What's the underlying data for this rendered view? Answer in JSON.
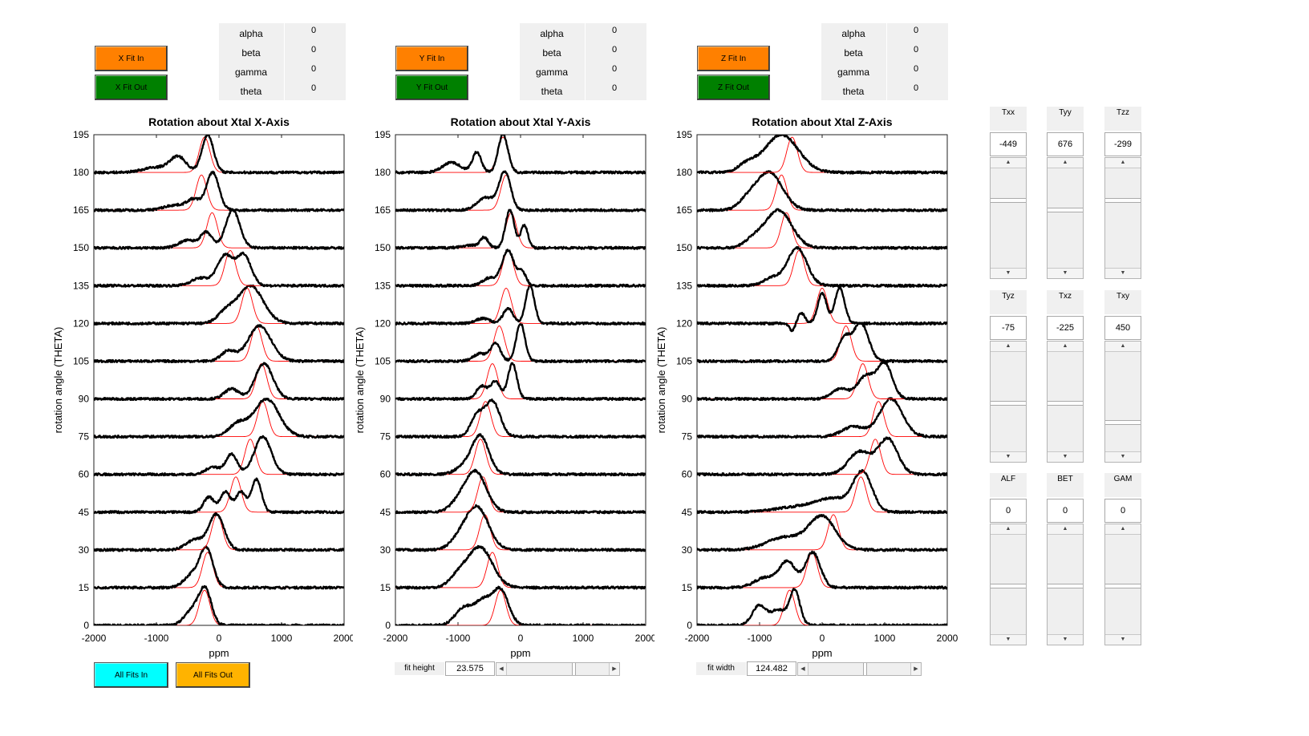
{
  "colors": {
    "fit_in": "#ff8000",
    "fit_out": "#008000",
    "all_in": "#00ffff",
    "all_out": "#ffb300",
    "curve": "#000000",
    "fit": "#ff0000"
  },
  "panels": [
    {
      "fit_in_label": "X Fit In",
      "fit_out_label": "X Fit Out",
      "params": [
        {
          "name": "alpha",
          "value": "0"
        },
        {
          "name": "beta",
          "value": "0"
        },
        {
          "name": "gamma",
          "value": "0"
        },
        {
          "name": "theta",
          "value": "0"
        }
      ]
    },
    {
      "fit_in_label": "Y Fit In",
      "fit_out_label": "Y Fit Out",
      "params": [
        {
          "name": "alpha",
          "value": "0"
        },
        {
          "name": "beta",
          "value": "0"
        },
        {
          "name": "gamma",
          "value": "0"
        },
        {
          "name": "theta",
          "value": "0"
        }
      ]
    },
    {
      "fit_in_label": "Z Fit In",
      "fit_out_label": "Z Fit Out",
      "params": [
        {
          "name": "alpha",
          "value": "0"
        },
        {
          "name": "beta",
          "value": "0"
        },
        {
          "name": "gamma",
          "value": "0"
        },
        {
          "name": "theta",
          "value": "0"
        }
      ]
    }
  ],
  "chart_data": [
    {
      "type": "line",
      "title": "Rotation about Xtal X-Axis",
      "xlabel": "ppm",
      "ylabel": "rotation angle (THETA)",
      "xlim": [
        -2000,
        2000
      ],
      "ylim": [
        0,
        195
      ],
      "xticks": [
        "-2000",
        "-1000",
        "0",
        "1000",
        "2000"
      ],
      "yticks": [
        "0",
        "15",
        "30",
        "45",
        "60",
        "75",
        "90",
        "105",
        "120",
        "135",
        "150",
        "165",
        "180",
        "195"
      ],
      "traces": [
        {
          "angle": 0,
          "fit": {
            "c": -230,
            "w": 120,
            "h": 14
          },
          "data": [
            [
              -220,
              14,
              140
            ],
            [
              -430,
              6,
              170
            ]
          ]
        },
        {
          "angle": 15,
          "fit": {
            "c": -180,
            "w": 120,
            "h": 14
          },
          "data": [
            [
              -200,
              15,
              150
            ],
            [
              -430,
              5,
              180
            ]
          ]
        },
        {
          "angle": 30,
          "fit": {
            "c": -30,
            "w": 120,
            "h": 14
          },
          "data": [
            [
              -40,
              14,
              170
            ],
            [
              -380,
              4,
              200
            ]
          ]
        },
        {
          "angle": 45,
          "fit": {
            "c": 270,
            "w": 120,
            "h": 14
          },
          "data": [
            [
              600,
              13,
              110
            ],
            [
              350,
              8,
              120
            ],
            [
              100,
              8,
              110
            ],
            [
              -160,
              6,
              120
            ]
          ]
        },
        {
          "angle": 60,
          "fit": {
            "c": 500,
            "w": 120,
            "h": 14
          },
          "data": [
            [
              700,
              15,
              190
            ],
            [
              200,
              8,
              130
            ],
            [
              -100,
              3,
              150
            ]
          ]
        },
        {
          "angle": 75,
          "fit": {
            "c": 700,
            "w": 120,
            "h": 14
          },
          "data": [
            [
              760,
              15,
              280
            ],
            [
              300,
              5,
              200
            ]
          ]
        },
        {
          "angle": 90,
          "fit": {
            "c": 680,
            "w": 120,
            "h": 14
          },
          "data": [
            [
              720,
              14,
              200
            ],
            [
              200,
              4,
              160
            ]
          ]
        },
        {
          "angle": 105,
          "fit": {
            "c": 600,
            "w": 120,
            "h": 14
          },
          "data": [
            [
              650,
              14,
              260
            ],
            [
              150,
              4,
              160
            ]
          ]
        },
        {
          "angle": 120,
          "fit": {
            "c": 450,
            "w": 120,
            "h": 14
          },
          "data": [
            [
              500,
              15,
              290
            ],
            [
              100,
              4,
              180
            ]
          ]
        },
        {
          "angle": 135,
          "fit": {
            "c": 180,
            "w": 120,
            "h": 14
          },
          "data": [
            [
              400,
              12,
              160
            ],
            [
              100,
              12,
              180
            ],
            [
              -300,
              3,
              200
            ]
          ]
        },
        {
          "angle": 150,
          "fit": {
            "c": -110,
            "w": 120,
            "h": 14
          },
          "data": [
            [
              220,
              15,
              160
            ],
            [
              -200,
              6,
              130
            ],
            [
              -500,
              3,
              200
            ]
          ]
        },
        {
          "angle": 165,
          "fit": {
            "c": -280,
            "w": 120,
            "h": 14
          },
          "data": [
            [
              -100,
              15,
              140
            ],
            [
              -400,
              4,
              150
            ],
            [
              -700,
              2,
              250
            ]
          ]
        },
        {
          "angle": 180,
          "fit": {
            "c": -230,
            "w": 120,
            "h": 14
          },
          "data": [
            [
              -180,
              15,
              130
            ],
            [
              -650,
              6,
              180
            ],
            [
              -1000,
              2,
              300
            ]
          ]
        }
      ]
    },
    {
      "type": "line",
      "title": "Rotation about Xtal Y-Axis",
      "xlabel": "ppm",
      "ylabel": "rotation angle (THETA)",
      "xlim": [
        -2000,
        2000
      ],
      "ylim": [
        0,
        195
      ],
      "xticks": [
        "-2000",
        "-1000",
        "0",
        "1000",
        "2000"
      ],
      "yticks": [
        "0",
        "15",
        "30",
        "45",
        "60",
        "75",
        "90",
        "105",
        "120",
        "135",
        "150",
        "165",
        "180",
        "195"
      ],
      "traces": [
        {
          "angle": 0,
          "fit": {
            "c": -320,
            "w": 120,
            "h": 14
          },
          "data": [
            [
              -320,
              14,
              180
            ],
            [
              -600,
              9,
              180
            ],
            [
              -900,
              7,
              200
            ]
          ]
        },
        {
          "angle": 15,
          "fit": {
            "c": -450,
            "w": 120,
            "h": 14
          },
          "data": [
            [
              -650,
              16,
              280
            ],
            [
              -1000,
              4,
              200
            ]
          ]
        },
        {
          "angle": 30,
          "fit": {
            "c": -570,
            "w": 120,
            "h": 14
          },
          "data": [
            [
              -700,
              17,
              260
            ],
            [
              -1000,
              3,
              200
            ]
          ]
        },
        {
          "angle": 45,
          "fit": {
            "c": -600,
            "w": 120,
            "h": 14
          },
          "data": [
            [
              -720,
              16,
              240
            ],
            [
              -1000,
              3,
              200
            ]
          ]
        },
        {
          "angle": 60,
          "fit": {
            "c": -640,
            "w": 120,
            "h": 14
          },
          "data": [
            [
              -640,
              15,
              190
            ],
            [
              -900,
              3,
              200
            ]
          ]
        },
        {
          "angle": 75,
          "fit": {
            "c": -560,
            "w": 120,
            "h": 14
          },
          "data": [
            [
              -450,
              14,
              170
            ],
            [
              -700,
              8,
              140
            ]
          ]
        },
        {
          "angle": 90,
          "fit": {
            "c": -450,
            "w": 120,
            "h": 14
          },
          "data": [
            [
              -130,
              14,
              100
            ],
            [
              -400,
              7,
              110
            ],
            [
              -620,
              5,
              120
            ]
          ]
        },
        {
          "angle": 105,
          "fit": {
            "c": -340,
            "w": 120,
            "h": 14
          },
          "data": [
            [
              0,
              15,
              100
            ],
            [
              -400,
              7,
              110
            ],
            [
              -650,
              3,
              150
            ]
          ]
        },
        {
          "angle": 120,
          "fit": {
            "c": -230,
            "w": 120,
            "h": 14
          },
          "data": [
            [
              150,
              15,
              100
            ],
            [
              -200,
              6,
              110
            ],
            [
              -600,
              2,
              150
            ]
          ]
        },
        {
          "angle": 135,
          "fit": {
            "c": -200,
            "w": 120,
            "h": 14
          },
          "data": [
            [
              -200,
              14,
              140
            ],
            [
              30,
              5,
              90
            ],
            [
              -500,
              3,
              150
            ]
          ]
        },
        {
          "angle": 150,
          "fit": {
            "c": -150,
            "w": 120,
            "h": 14
          },
          "data": [
            [
              -170,
              15,
              100
            ],
            [
              60,
              9,
              80
            ],
            [
              -580,
              4,
              90
            ],
            [
              -800,
              1,
              200
            ]
          ]
        },
        {
          "angle": 165,
          "fit": {
            "c": -230,
            "w": 120,
            "h": 14
          },
          "data": [
            [
              -250,
              15,
              130
            ],
            [
              -550,
              5,
              200
            ]
          ]
        },
        {
          "angle": 180,
          "fit": {
            "c": -280,
            "w": 120,
            "h": 14
          },
          "data": [
            [
              -280,
              15,
              110
            ],
            [
              -700,
              8,
              100
            ],
            [
              -1100,
              4,
              200
            ]
          ]
        }
      ]
    },
    {
      "type": "line",
      "title": "Rotation about Xtal Z-Axis",
      "xlabel": "ppm",
      "ylabel": "rotation angle (THETA)",
      "xlim": [
        -2000,
        2000
      ],
      "ylim": [
        0,
        195
      ],
      "xticks": [
        "-2000",
        "-1000",
        "0",
        "1000",
        "2000"
      ],
      "yticks": [
        "0",
        "15",
        "30",
        "45",
        "60",
        "75",
        "90",
        "105",
        "120",
        "135",
        "150",
        "165",
        "180",
        "195"
      ],
      "traces": [
        {
          "angle": 0,
          "fit": {
            "c": -520,
            "w": 120,
            "h": 14
          },
          "data": [
            [
              -440,
              14,
              120
            ],
            [
              -700,
              6,
              150
            ],
            [
              -1000,
              8,
              160
            ]
          ]
        },
        {
          "angle": 15,
          "fit": {
            "c": -160,
            "w": 120,
            "h": 14
          },
          "data": [
            [
              -150,
              14,
              170
            ],
            [
              -550,
              10,
              180
            ],
            [
              -900,
              4,
              250
            ]
          ]
        },
        {
          "angle": 30,
          "fit": {
            "c": 180,
            "w": 120,
            "h": 14
          },
          "data": [
            [
              0,
              13,
              300
            ],
            [
              -600,
              5,
              400
            ]
          ]
        },
        {
          "angle": 45,
          "fit": {
            "c": 620,
            "w": 120,
            "h": 14
          },
          "data": [
            [
              650,
              15,
              210
            ],
            [
              200,
              5,
              400
            ],
            [
              -400,
              2,
              500
            ]
          ]
        },
        {
          "angle": 60,
          "fit": {
            "c": 850,
            "w": 120,
            "h": 14
          },
          "data": [
            [
              1050,
              14,
              220
            ],
            [
              600,
              9,
              250
            ]
          ]
        },
        {
          "angle": 75,
          "fit": {
            "c": 900,
            "w": 120,
            "h": 14
          },
          "data": [
            [
              1100,
              15,
              260
            ],
            [
              500,
              4,
              250
            ]
          ]
        },
        {
          "angle": 90,
          "fit": {
            "c": 650,
            "w": 120,
            "h": 14
          },
          "data": [
            [
              1000,
              14,
              170
            ],
            [
              700,
              9,
              180
            ],
            [
              300,
              4,
              200
            ]
          ]
        },
        {
          "angle": 105,
          "fit": {
            "c": 380,
            "w": 120,
            "h": 14
          },
          "data": [
            [
              620,
              15,
              170
            ],
            [
              350,
              9,
              140
            ]
          ]
        },
        {
          "angle": 120,
          "fit": {
            "c": 0,
            "w": 120,
            "h": 14
          },
          "data": [
            [
              280,
              14,
              110
            ],
            [
              0,
              12,
              100
            ],
            [
              -330,
              4,
              80
            ],
            [
              -480,
              -3,
              60
            ]
          ]
        },
        {
          "angle": 135,
          "fit": {
            "c": -370,
            "w": 120,
            "h": 14
          },
          "data": [
            [
              -400,
              15,
              220
            ],
            [
              -800,
              3,
              200
            ]
          ]
        },
        {
          "angle": 150,
          "fit": {
            "c": -570,
            "w": 120,
            "h": 14
          },
          "data": [
            [
              -700,
              15,
              300
            ],
            [
              -1100,
              3,
              200
            ]
          ]
        },
        {
          "angle": 165,
          "fit": {
            "c": -650,
            "w": 120,
            "h": 14
          },
          "data": [
            [
              -850,
              15,
              300
            ],
            [
              -1200,
              3,
              200
            ]
          ]
        },
        {
          "angle": 180,
          "fit": {
            "c": -480,
            "w": 120,
            "h": 14
          },
          "data": [
            [
              -650,
              15,
              380
            ],
            [
              -1200,
              3,
              200
            ]
          ]
        }
      ]
    }
  ],
  "bottom": {
    "all_in_label": "All Fits In",
    "all_out_label": "All Fits Out",
    "fit_height_label": "fit height",
    "fit_height_value": "23.575",
    "fit_height_pos": 0.65,
    "fit_width_label": "fit width",
    "fit_width_value": "124.482",
    "fit_width_pos": 0.55
  },
  "tensor": [
    {
      "label": "Txx",
      "value": "-449",
      "pos": 0.7
    },
    {
      "label": "Tyy",
      "value": "676",
      "pos": 0.6
    },
    {
      "label": "Tzz",
      "value": "-299",
      "pos": 0.7
    },
    {
      "label": "Tyz",
      "value": "-75",
      "pos": 0.5
    },
    {
      "label": "Txz",
      "value": "-225",
      "pos": 0.5
    },
    {
      "label": "Txy",
      "value": "450",
      "pos": 0.3
    },
    {
      "label": "ALF",
      "value": "0",
      "pos": 0.5
    },
    {
      "label": "BET",
      "value": "0",
      "pos": 0.5
    },
    {
      "label": "GAM",
      "value": "0",
      "pos": 0.5
    }
  ]
}
